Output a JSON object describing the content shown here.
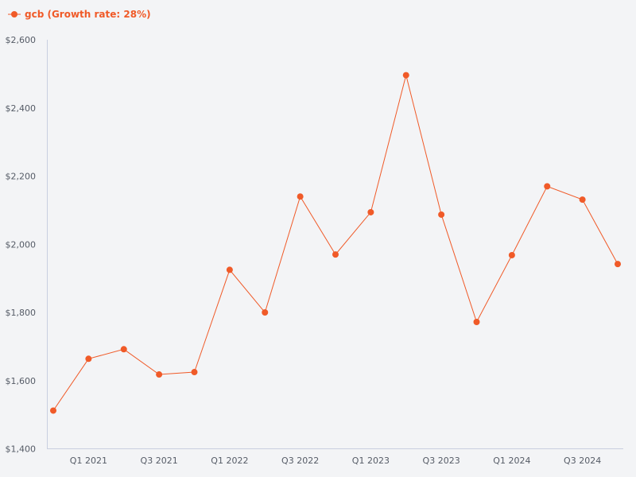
{
  "colors": {
    "series": "#f05a28",
    "axis": "#c9cfe0",
    "text": "#555b66",
    "background": "#f3f4f6"
  },
  "chart_data": {
    "type": "line",
    "legend": {
      "label": "gcb (Growth rate: 28%)",
      "position": "top-left"
    },
    "series": [
      {
        "name": "gcb",
        "values": [
          1512,
          1664,
          1692,
          1618,
          1625,
          1925,
          1800,
          2140,
          1970,
          2094,
          2496,
          2087,
          1772,
          1968,
          2170,
          2131,
          1942
        ]
      }
    ],
    "x_tick_labels": [
      "Q1 2021",
      "Q3 2021",
      "Q1 2022",
      "Q3 2022",
      "Q1 2023",
      "Q3 2023",
      "Q1 2024",
      "Q3 2024"
    ],
    "y_tick_labels": [
      "$1,400",
      "$1,600",
      "$1,800",
      "$2,000",
      "$2,200",
      "$2,400",
      "$2,600"
    ],
    "ylim": [
      1400,
      2600
    ],
    "grid": false
  }
}
